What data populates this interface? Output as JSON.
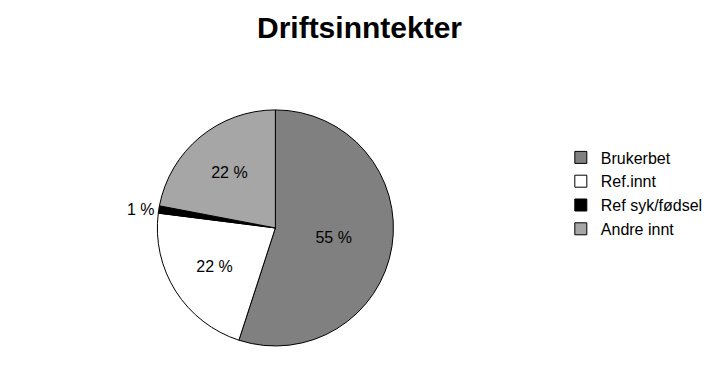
{
  "chart_data": {
    "type": "pie",
    "title": "Driftsinntekter",
    "categories": [
      "Brukerbet",
      "Ref.innt",
      "Ref syk/fødsel",
      "Andre innt"
    ],
    "values": [
      55,
      22,
      1,
      22
    ],
    "value_labels": [
      "55 %",
      "22 %",
      "1 %",
      "22 %"
    ],
    "colors": [
      "#808080",
      "#ffffff",
      "#000000",
      "#a6a6a6"
    ],
    "data_labels": true,
    "legend": "right"
  }
}
